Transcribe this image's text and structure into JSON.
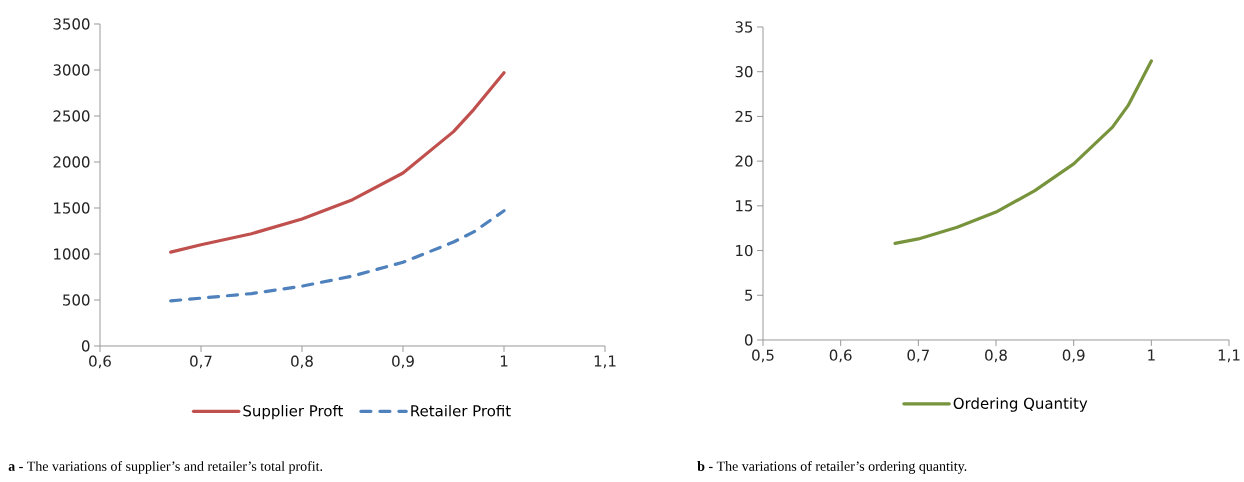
{
  "chart_data": [
    {
      "type": "line",
      "x": [
        0.67,
        0.7,
        0.75,
        0.8,
        0.85,
        0.9,
        0.95,
        0.97,
        1.0
      ],
      "series": [
        {
          "name": "Supplier Proft",
          "color": "#c0504d",
          "line_style": "solid",
          "values": [
            1020,
            1100,
            1220,
            1380,
            1590,
            1880,
            2330,
            2570,
            2970
          ]
        },
        {
          "name": "Retailer Profit",
          "color": "#4f81bd",
          "line_style": "dashed",
          "values": [
            490,
            520,
            570,
            650,
            760,
            910,
            1130,
            1240,
            1470
          ]
        }
      ],
      "xlim": [
        0.6,
        1.1
      ],
      "ylim": [
        0,
        3500
      ],
      "xticks": [
        {
          "value": 0.6,
          "label": "0,6"
        },
        {
          "value": 0.7,
          "label": "0,7"
        },
        {
          "value": 0.8,
          "label": "0,8"
        },
        {
          "value": 0.9,
          "label": "0,9"
        },
        1,
        {
          "value": 1.1,
          "label": "1,1"
        }
      ],
      "yticks": [
        0,
        500,
        1000,
        1500,
        2000,
        2500,
        3000,
        3500
      ],
      "legend": "bottom",
      "annotations": [
        "**a -** The variations of supplier’s and retailer’s total profit."
      ]
    },
    {
      "type": "line",
      "x": [
        0.67,
        0.7,
        0.75,
        0.8,
        0.85,
        0.9,
        0.95,
        0.97,
        1.0
      ],
      "series": [
        {
          "name": "Ordering Quantity",
          "color": "#77933c",
          "line_style": "solid",
          "values": [
            10.8,
            11.3,
            12.6,
            14.3,
            16.7,
            19.7,
            23.8,
            26.2,
            31.2
          ]
        }
      ],
      "xlim": [
        0.5,
        1.1
      ],
      "ylim": [
        0,
        35
      ],
      "xticks": [
        {
          "value": 0.5,
          "label": "0,5"
        },
        {
          "value": 0.6,
          "label": "0,6"
        },
        {
          "value": 0.7,
          "label": "0,7"
        },
        {
          "value": 0.8,
          "label": "0,8"
        },
        {
          "value": 0.9,
          "label": "0,9"
        },
        1,
        {
          "value": 1.1,
          "label": "1,1"
        }
      ],
      "yticks": [
        0,
        5,
        10,
        15,
        20,
        25,
        30,
        35
      ],
      "legend": "bottom",
      "annotations": [
        "**b -** The variations of retailer’s ordering quantity."
      ]
    }
  ]
}
